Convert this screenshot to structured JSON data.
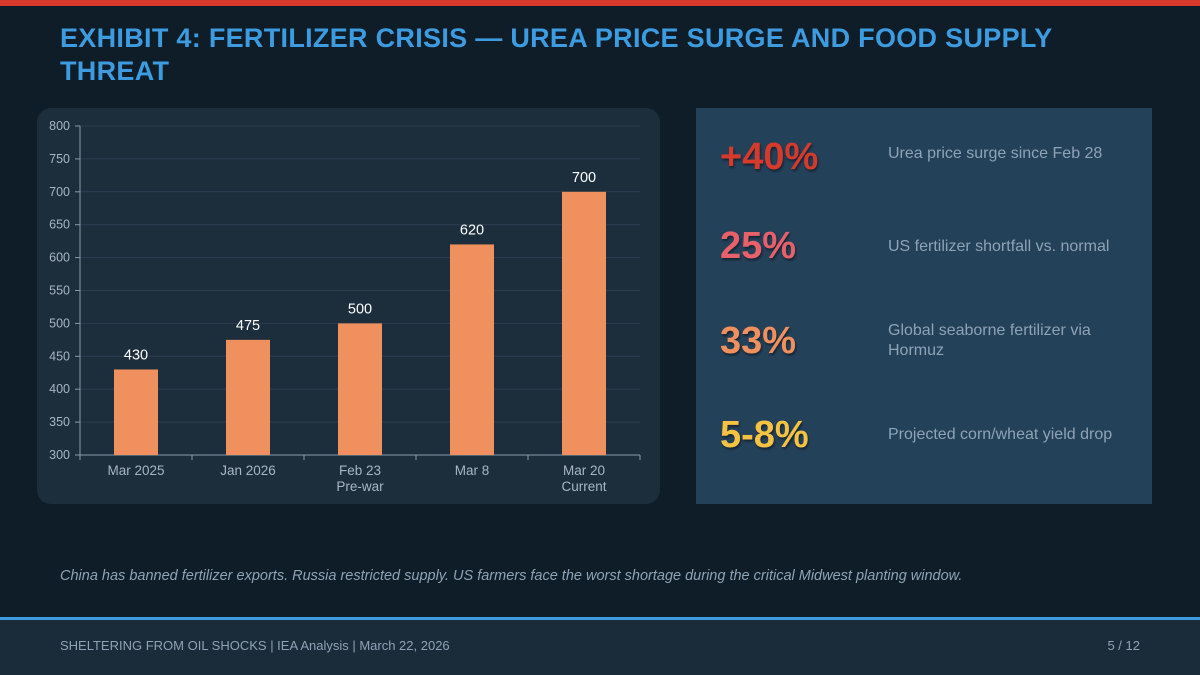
{
  "title": "EXHIBIT 4: FERTILIZER CRISIS — UREA PRICE SURGE AND FOOD SUPPLY THREAT",
  "chart_data": {
    "type": "bar",
    "title": "",
    "xlabel": "",
    "ylabel": "",
    "ylim": [
      300,
      800
    ],
    "yticks": [
      300,
      350,
      400,
      450,
      500,
      550,
      600,
      650,
      700,
      750,
      800
    ],
    "grid": true,
    "categories": [
      {
        "line1": "Mar 2025",
        "line2": ""
      },
      {
        "line1": "Jan 2026",
        "line2": ""
      },
      {
        "line1": "Feb 23",
        "line2": "Pre-war"
      },
      {
        "line1": "Mar 8",
        "line2": ""
      },
      {
        "line1": "Mar 20",
        "line2": "Current"
      }
    ],
    "values": [
      430,
      475,
      500,
      620,
      700
    ],
    "data_labels": [
      "430",
      "475",
      "500",
      "620",
      "700"
    ],
    "bar_color": "#f0905e"
  },
  "stats": [
    {
      "value": "+40%",
      "label": "Urea price surge since Feb 28",
      "color": "#d63a2c"
    },
    {
      "value": "25%",
      "label": "US fertilizer shortfall vs. normal",
      "color": "#e8606a"
    },
    {
      "value": "33%",
      "label": "Global seaborne fertilizer via Hormuz",
      "color": "#f0905e"
    },
    {
      "value": "5-8%",
      "label": "Projected corn/wheat yield drop",
      "color": "#f5c242"
    }
  ],
  "footnote": "China has banned fertilizer exports. Russia restricted supply. US farmers face the worst shortage during the critical Midwest planting window.",
  "footer": {
    "left": "SHELTERING FROM OIL SHOCKS  |  IEA Analysis  |  March 22, 2026",
    "page": "5 / 12"
  }
}
